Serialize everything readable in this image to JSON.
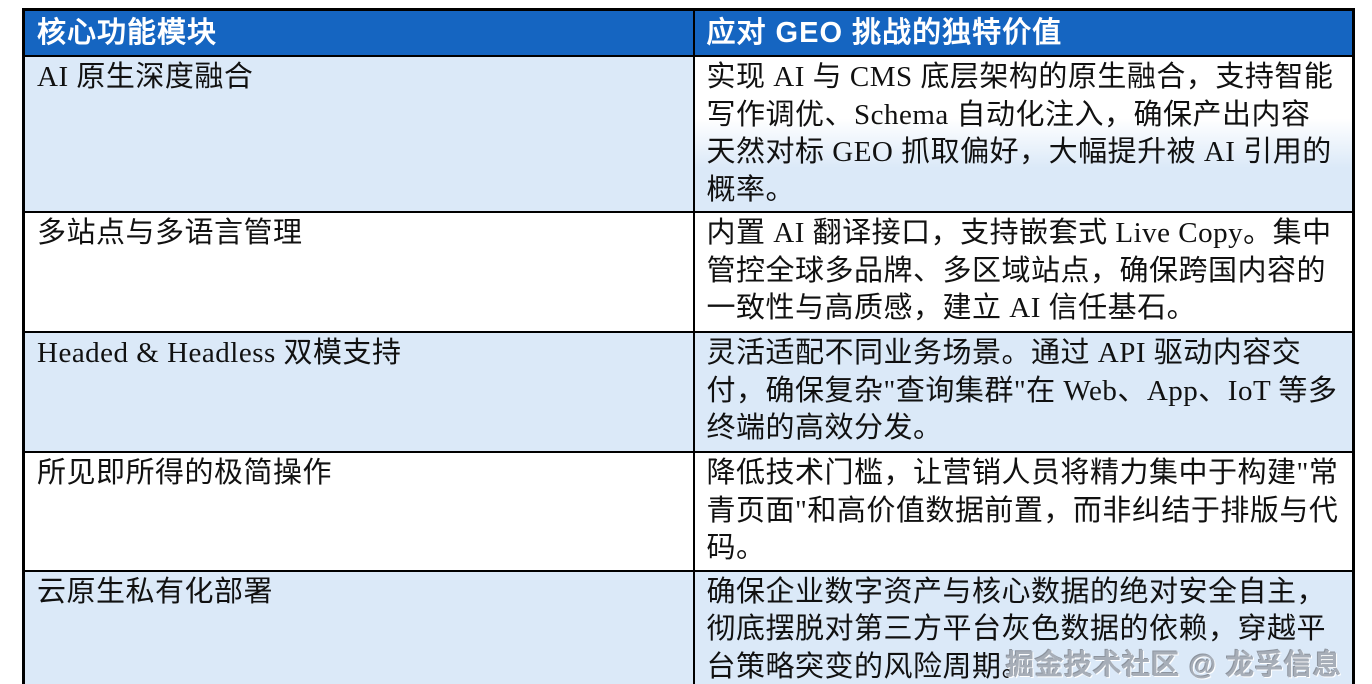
{
  "table": {
    "header": {
      "col1": "核心功能模块",
      "col2": "应对 GEO 挑战的独特价值"
    },
    "rows": [
      {
        "module": "AI 原生深度融合",
        "value": "实现 AI 与 CMS 底层架构的原生融合，支持智能写作调优、Schema 自动化注入，确保产出内容天然对标 GEO 抓取偏好，大幅提升被 AI 引用的概率。"
      },
      {
        "module": "多站点与多语言管理",
        "value": "内置 AI 翻译接口，支持嵌套式 Live Copy。集中管控全球多品牌、多区域站点，确保跨国内容的一致性与高质感，建立 AI 信任基石。"
      },
      {
        "module": "Headed & Headless 双模支持",
        "value": "灵活适配不同业务场景。通过 API 驱动内容交付，确保复杂\"查询集群\"在 Web、App、IoT 等多终端的高效分发。"
      },
      {
        "module": "所见即所得的极简操作",
        "value": "降低技术门槛，让营销人员将精力集中于构建\"常青页面\"和高价值数据前置，而非纠结于排版与代码。"
      },
      {
        "module": "云原生私有化部署",
        "value": "确保企业数字资产与核心数据的绝对安全自主，彻底摆脱对第三方平台灰色数据的依赖，穿越平台策略突变的风险周期。"
      }
    ],
    "watermark": "掘金技术社区 @ 龙孚信息"
  },
  "colors": {
    "header_bg": "#1565c1",
    "header_text": "#ffffff",
    "row_shaded_bg": "#dbe9f8",
    "row_plain_bg": "#ffffff",
    "border": "#000000",
    "body_text": "#111111",
    "watermark_text": "#a7aeb8"
  }
}
